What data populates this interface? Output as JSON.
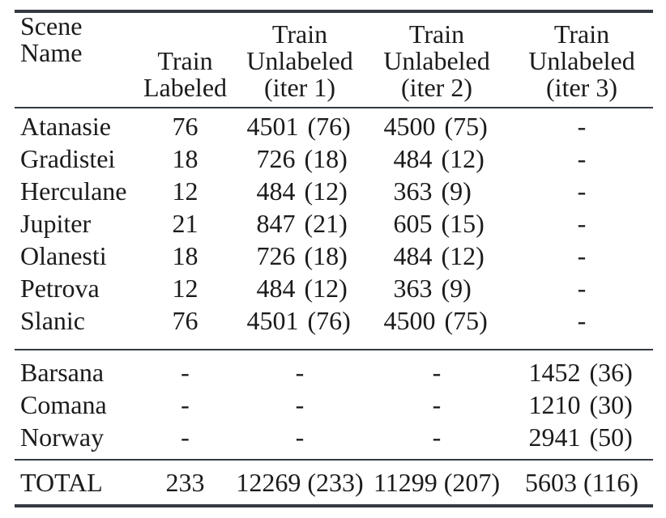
{
  "colors": {
    "text": "#1b1b1b",
    "rule": "#343a43",
    "background": "#ffffff"
  },
  "table": {
    "header": {
      "scene": [
        "Scene",
        "Name"
      ],
      "labeled": [
        "Train",
        "Labeled"
      ],
      "iter1": [
        "Train",
        "Unlabeled",
        "(iter 1)"
      ],
      "iter2": [
        "Train",
        "Unlabeled",
        "(iter 2)"
      ],
      "iter3": [
        "Train",
        "Unlabeled",
        "(iter 3)"
      ]
    },
    "rows": [
      {
        "scene": "Atanasie",
        "labeled": "76",
        "iter1_n": "4501",
        "iter1_p": "(76)",
        "iter2_n": "4500",
        "iter2_p": "(75)",
        "iter3": "-"
      },
      {
        "scene": "Gradistei",
        "labeled": "18",
        "iter1_n": "726",
        "iter1_p": "(18)",
        "iter2_n": "484",
        "iter2_p": "(12)",
        "iter3": "-"
      },
      {
        "scene": "Herculane",
        "labeled": "12",
        "iter1_n": "484",
        "iter1_p": "(12)",
        "iter2_n": "363",
        "iter2_p": "(9)",
        "iter3": "-"
      },
      {
        "scene": "Jupiter",
        "labeled": "21",
        "iter1_n": "847",
        "iter1_p": "(21)",
        "iter2_n": "605",
        "iter2_p": "(15)",
        "iter3": "-"
      },
      {
        "scene": "Olanesti",
        "labeled": "18",
        "iter1_n": "726",
        "iter1_p": "(18)",
        "iter2_n": "484",
        "iter2_p": "(12)",
        "iter3": "-"
      },
      {
        "scene": "Petrova",
        "labeled": "12",
        "iter1_n": "484",
        "iter1_p": "(12)",
        "iter2_n": "363",
        "iter2_p": "(9)",
        "iter3": "-"
      },
      {
        "scene": "Slanic",
        "labeled": "76",
        "iter1_n": "4501",
        "iter1_p": "(76)",
        "iter2_n": "4500",
        "iter2_p": "(75)",
        "iter3": "-"
      }
    ],
    "rows_extra": [
      {
        "scene": "Barsana",
        "labeled": "-",
        "iter1": "-",
        "iter2": "-",
        "iter3_n": "1452",
        "iter3_p": "(36)"
      },
      {
        "scene": "Comana",
        "labeled": "-",
        "iter1": "-",
        "iter2": "-",
        "iter3_n": "1210",
        "iter3_p": "(30)"
      },
      {
        "scene": "Norway",
        "labeled": "-",
        "iter1": "-",
        "iter2": "-",
        "iter3_n": "2941",
        "iter3_p": "(50)"
      }
    ],
    "total": {
      "scene": "TOTAL",
      "labeled": "233",
      "iter1": "12269 (233)",
      "iter2": "11299 (207)",
      "iter3": "5603 (116)"
    }
  }
}
